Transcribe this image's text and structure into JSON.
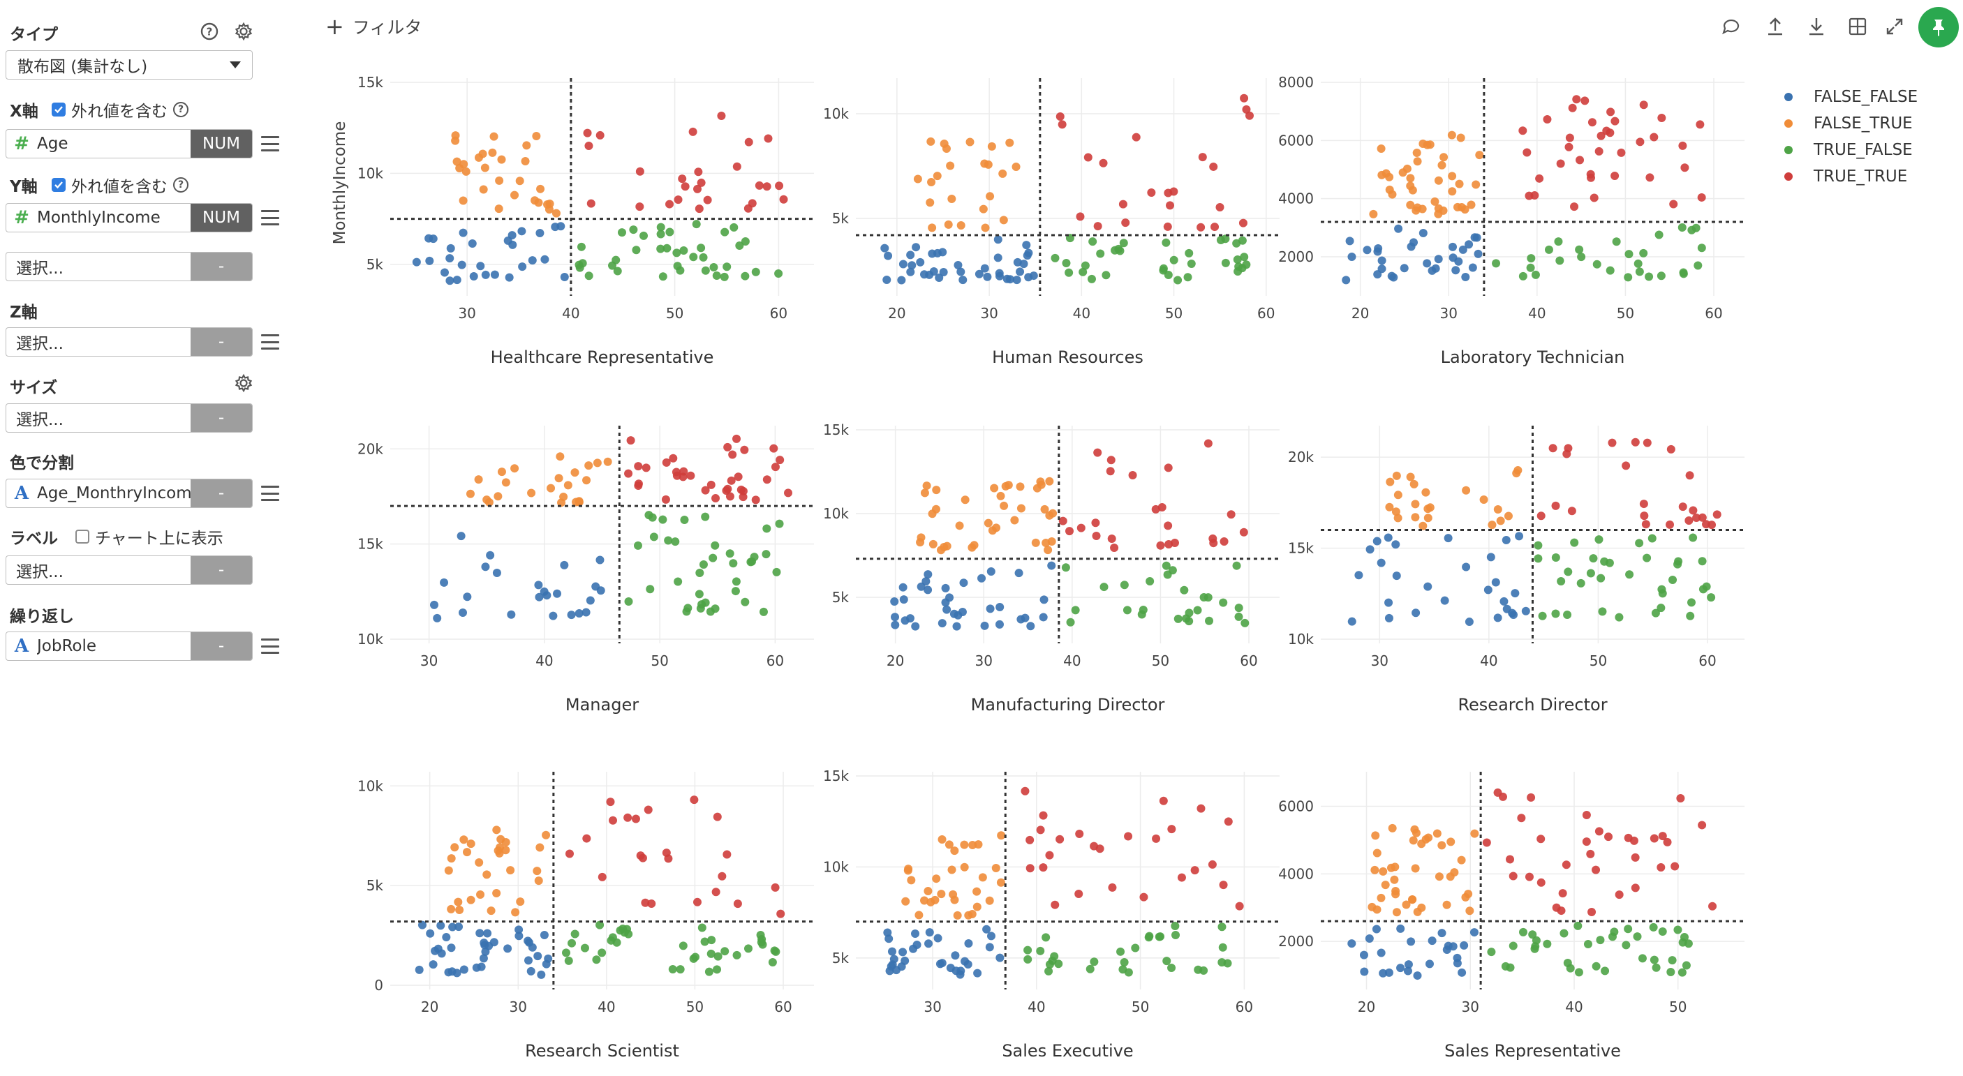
{
  "sidebar": {
    "type": {
      "label": "タイプ",
      "value": "散布図 (集計なし)"
    },
    "x_axis": {
      "label": "X軸",
      "include_outliers": "外れ値を含む",
      "field": "Age",
      "tag": "NUM"
    },
    "y_axis": {
      "label": "Y軸",
      "include_outliers": "外れ値を含む",
      "field": "MonthlyIncome",
      "tag": "NUM"
    },
    "extra_select": {
      "placeholder": "選択...",
      "tag": "-"
    },
    "z_axis": {
      "label": "Z軸",
      "placeholder": "選択...",
      "tag": "-"
    },
    "size": {
      "label": "サイズ",
      "placeholder": "選択...",
      "tag": "-"
    },
    "color": {
      "label": "色で分割",
      "field": "Age_MonthryIncom",
      "tag": "-"
    },
    "label": {
      "label": "ラベル",
      "show_on_chart": "チャート上に表示",
      "placeholder": "選択...",
      "tag": "-"
    },
    "repeat": {
      "label": "繰り返し",
      "field": "JobRole",
      "tag": "-"
    }
  },
  "toolbar": {
    "filter_label": "フィルタ"
  },
  "legend": [
    {
      "name": "FALSE_FALSE",
      "color": "#3a72b0"
    },
    {
      "name": "FALSE_TRUE",
      "color": "#f08c38"
    },
    {
      "name": "TRUE_FALSE",
      "color": "#4ea346"
    },
    {
      "name": "TRUE_TRUE",
      "color": "#cf3d3b"
    }
  ],
  "y_axis_title": "MonthlyIncome",
  "chart_data": [
    {
      "type": "scatter",
      "title": "Healthcare Representative",
      "xticks": [
        30,
        40,
        50,
        60
      ],
      "yticks": [
        {
          "v": 5000,
          "t": "5k"
        },
        {
          "v": 10000,
          "t": "10k"
        },
        {
          "v": 15000,
          "t": "15k"
        }
      ],
      "xlim": [
        23,
        63
      ],
      "ylim": [
        3500,
        15000
      ],
      "vline": 40,
      "hline": 7500
    },
    {
      "type": "scatter",
      "title": "Human Resources",
      "xticks": [
        20,
        30,
        40,
        50,
        60
      ],
      "yticks": [
        {
          "v": 5000,
          "t": "5k"
        },
        {
          "v": 10000,
          "t": "10k"
        }
      ],
      "xlim": [
        16,
        61
      ],
      "ylim": [
        1500,
        11500
      ],
      "vline": 35.5,
      "hline": 4200
    },
    {
      "type": "scatter",
      "title": "Laboratory Technician",
      "xticks": [
        20,
        30,
        40,
        50,
        60
      ],
      "yticks": [
        {
          "v": 2000,
          "t": "2000"
        },
        {
          "v": 4000,
          "t": "4000"
        },
        {
          "v": 6000,
          "t": "6000"
        },
        {
          "v": 8000,
          "t": "8000"
        }
      ],
      "xlim": [
        16,
        63
      ],
      "ylim": [
        800,
        8000
      ],
      "vline": 34,
      "hline": 3200
    },
    {
      "type": "scatter",
      "title": "Manager",
      "xticks": [
        30,
        40,
        50,
        60
      ],
      "yticks": [
        {
          "v": 10000,
          "t": "10k"
        },
        {
          "v": 15000,
          "t": "15k"
        },
        {
          "v": 20000,
          "t": "20k"
        }
      ],
      "xlim": [
        27,
        63
      ],
      "ylim": [
        10000,
        21000
      ],
      "vline": 46.5,
      "hline": 17000
    },
    {
      "type": "scatter",
      "title": "Manufacturing Director",
      "xticks": [
        20,
        30,
        40,
        50,
        60
      ],
      "yticks": [
        {
          "v": 5000,
          "t": "5k"
        },
        {
          "v": 10000,
          "t": "10k"
        },
        {
          "v": 15000,
          "t": "15k"
        }
      ],
      "xlim": [
        16,
        63
      ],
      "ylim": [
        2500,
        15000
      ],
      "vline": 38.5,
      "hline": 7300
    },
    {
      "type": "scatter",
      "title": "Research Director",
      "xticks": [
        30,
        40,
        50,
        60
      ],
      "yticks": [
        {
          "v": 10000,
          "t": "10k"
        },
        {
          "v": 15000,
          "t": "15k"
        },
        {
          "v": 20000,
          "t": "20k"
        }
      ],
      "xlim": [
        25,
        63
      ],
      "ylim": [
        10000,
        21500
      ],
      "vline": 44,
      "hline": 16000
    },
    {
      "type": "scatter",
      "title": "Research Scientist",
      "xticks": [
        20,
        30,
        40,
        50,
        60
      ],
      "yticks": [
        {
          "v": 0,
          "t": "0"
        },
        {
          "v": 5000,
          "t": "5k"
        },
        {
          "v": 10000,
          "t": "10k"
        }
      ],
      "xlim": [
        16,
        63
      ],
      "ylim": [
        0,
        10500
      ],
      "vline": 34,
      "hline": 3200
    },
    {
      "type": "scatter",
      "title": "Sales Executive",
      "xticks": [
        30,
        40,
        50,
        60
      ],
      "yticks": [
        {
          "v": 5000,
          "t": "5k"
        },
        {
          "v": 10000,
          "t": "10k"
        },
        {
          "v": 15000,
          "t": "15k"
        }
      ],
      "xlim": [
        23,
        63
      ],
      "ylim": [
        3500,
        15000
      ],
      "vline": 37,
      "hline": 7000
    },
    {
      "type": "scatter",
      "title": "Sales Representative",
      "xticks": [
        20,
        30,
        40,
        50
      ],
      "yticks": [
        {
          "v": 2000,
          "t": "2000"
        },
        {
          "v": 4000,
          "t": "4000"
        },
        {
          "v": 6000,
          "t": "6000"
        }
      ],
      "xlim": [
        16,
        56
      ],
      "ylim": [
        700,
        6900
      ],
      "vline": 31,
      "hline": 2600
    }
  ]
}
